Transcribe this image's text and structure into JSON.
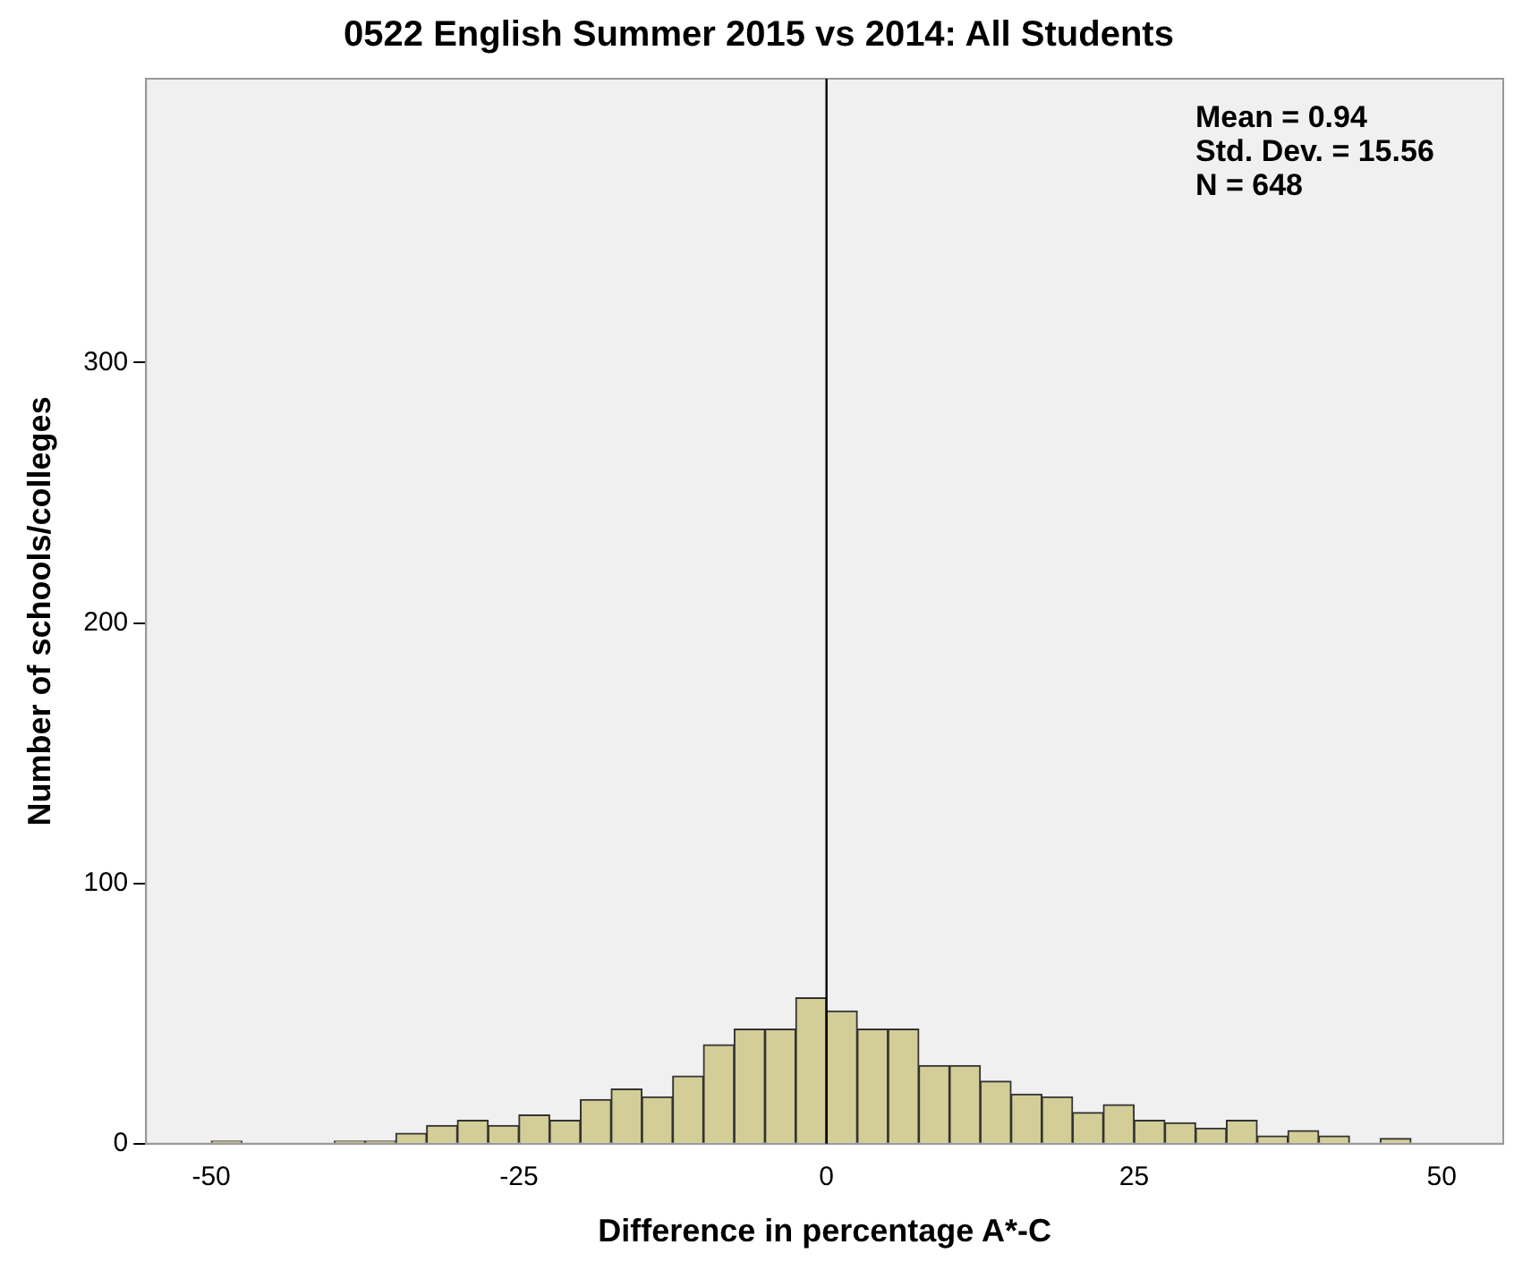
{
  "chart_data": {
    "type": "histogram",
    "title": "0522 English Summer 2015 vs 2014: All Students",
    "xlabel": "Difference in percentage A*-C",
    "ylabel": "Number of schools/colleges",
    "bins": [
      -50,
      -47.5,
      -45,
      -42.5,
      -40,
      -37.5,
      -35,
      -32.5,
      -30,
      -27.5,
      -25,
      -22.5,
      -20,
      -17.5,
      -15,
      -12.5,
      -10,
      -7.5,
      -5,
      -2.5,
      0,
      2.5,
      5,
      7.5,
      10,
      12.5,
      15,
      17.5,
      20,
      22.5,
      25,
      27.5,
      30,
      32.5,
      35,
      37.5,
      40,
      42.5,
      45,
      47.5
    ],
    "values": [
      1,
      0,
      0,
      0,
      1,
      1,
      4,
      7,
      9,
      7,
      11,
      9,
      17,
      21,
      18,
      26,
      38,
      44,
      44,
      56,
      51,
      44,
      44,
      30,
      30,
      24,
      19,
      18,
      12,
      15,
      9,
      8,
      6,
      9,
      3,
      5,
      3,
      0,
      2
    ],
    "color": "#d3ce97",
    "xlim": [
      -55.3,
      55
    ],
    "xticks": [
      -50,
      -25,
      0,
      25,
      50
    ],
    "ylim": [
      0,
      409
    ],
    "yticks": [
      0,
      100,
      200,
      300
    ],
    "ref_lines": [
      {
        "axis": "x",
        "value": 0,
        "color": "#000000"
      }
    ],
    "annotations": [
      "Mean = 0.94",
      "Std. Dev. = 15.56",
      "N = 648"
    ],
    "grid": false,
    "legend": false
  }
}
